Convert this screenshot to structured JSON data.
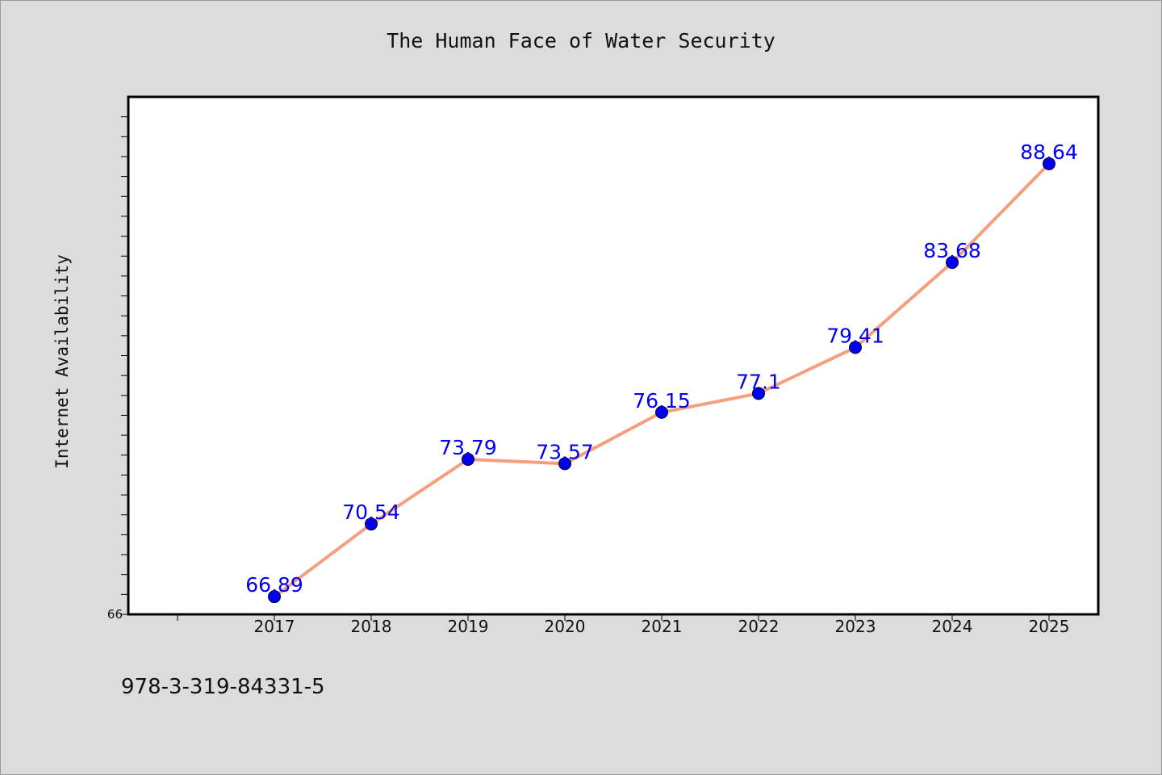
{
  "chart_data": {
    "type": "line",
    "title": "The Human Face of Water Security",
    "xlabel": "",
    "ylabel": "Internet Availability",
    "categories": [
      "2017",
      "2018",
      "2019",
      "2020",
      "2021",
      "2022",
      "2023",
      "2024",
      "2025"
    ],
    "series": [
      {
        "values": [
          66.89,
          70.54,
          73.79,
          73.57,
          76.15,
          77.1,
          79.41,
          83.68,
          88.64
        ]
      }
    ],
    "data_labels": [
      "66.89",
      "70.54",
      "73.79",
      "73.57",
      "76.15",
      "77.1",
      "79.41",
      "83.68",
      "88.64"
    ],
    "ylim": [
      66,
      92
    ],
    "y_tick_labels": [
      "66"
    ],
    "grid": false,
    "line_color": "#f4a07e",
    "marker_color": "#0000ee",
    "label_color": "#0000ee",
    "background_color": "#dcdcdc",
    "plot_background": "#ffffff"
  },
  "footer": {
    "isbn": "978-3-319-84331-5"
  }
}
